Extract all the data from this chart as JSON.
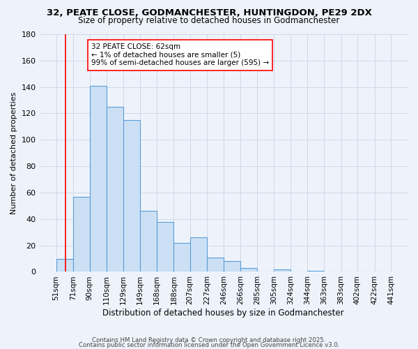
{
  "title": "32, PEATE CLOSE, GODMANCHESTER, HUNTINGDON, PE29 2DX",
  "subtitle": "Size of property relative to detached houses in Godmanchester",
  "xlabel": "Distribution of detached houses by size in Godmanchester",
  "ylabel": "Number of detached properties",
  "bar_values": [
    10,
    57,
    141,
    125,
    115,
    46,
    38,
    22,
    26,
    11,
    8,
    3,
    0,
    2,
    0,
    1,
    0,
    0,
    0,
    0
  ],
  "bin_edges": [
    51,
    71,
    90,
    110,
    129,
    149,
    168,
    188,
    207,
    227,
    246,
    266,
    285,
    305,
    324,
    344,
    363,
    383,
    402,
    422,
    441
  ],
  "x_tick_labels": [
    "51sqm",
    "71sqm",
    "90sqm",
    "110sqm",
    "129sqm",
    "149sqm",
    "168sqm",
    "188sqm",
    "207sqm",
    "227sqm",
    "246sqm",
    "266sqm",
    "285sqm",
    "305sqm",
    "324sqm",
    "344sqm",
    "363sqm",
    "383sqm",
    "402sqm",
    "422sqm",
    "441sqm"
  ],
  "bar_face_color": "#cce0f5",
  "bar_edge_color": "#5b9bd5",
  "grid_color": "#d0d8e8",
  "background_color": "#eef3fb",
  "annotation_box_text": "32 PEATE CLOSE: 62sqm\n← 1% of detached houses are smaller (5)\n99% of semi-detached houses are larger (595) →",
  "red_line_x": 62,
  "ylim": [
    0,
    180
  ],
  "yticks": [
    0,
    20,
    40,
    60,
    80,
    100,
    120,
    140,
    160,
    180
  ],
  "footer_line1": "Contains HM Land Registry data © Crown copyright and database right 2025.",
  "footer_line2": "Contains public sector information licensed under the Open Government Licence v3.0."
}
